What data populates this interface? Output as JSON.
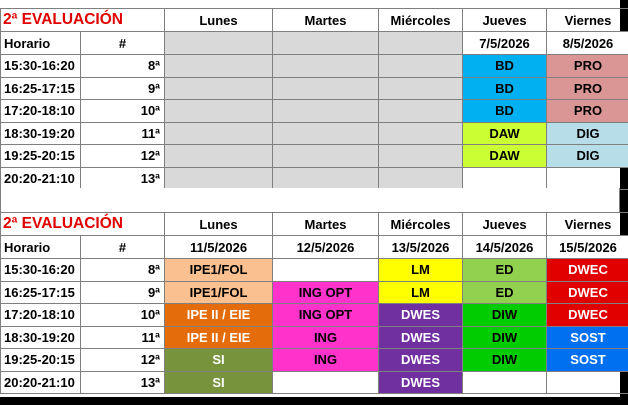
{
  "colors": {
    "title_red": "#e00000",
    "gray": "#d9d9d9",
    "BD": "#00b0f0",
    "PRO": "#da9694",
    "DAW": "#ccff33",
    "DIG": "#b7dee8",
    "IPE1/FOL": "#fac090",
    "IPE II / EIE": "#e46c0a",
    "ING OPT": "#ff33cc",
    "ING": "#ff33cc",
    "SI": "#77933c",
    "LM": "#ffff00",
    "DWES": "#7030a0",
    "ED": "#92d050",
    "DIW": "#00cc00",
    "DWEC": "#e00000",
    "SOST": "#0070f0"
  },
  "week1": {
    "title": "2ª EVALUACIÓN",
    "col_horario": "Horario",
    "col_num": "#",
    "days": [
      "Lunes",
      "Martes",
      "Miércoles",
      "Jueves",
      "Viernes"
    ],
    "dates": [
      "",
      "",
      "",
      "7/5/2026",
      "8/5/2026"
    ],
    "rows": [
      {
        "time": "15:30-16:20",
        "num": "8ª",
        "cells": [
          "",
          "",
          "",
          "BD",
          "PRO"
        ]
      },
      {
        "time": "16:25-17:15",
        "num": "9ª",
        "cells": [
          "",
          "",
          "",
          "BD",
          "PRO"
        ]
      },
      {
        "time": "17:20-18:10",
        "num": "10ª",
        "cells": [
          "",
          "",
          "",
          "BD",
          "PRO"
        ]
      },
      {
        "time": "18:30-19:20",
        "num": "11ª",
        "cells": [
          "",
          "",
          "",
          "DAW",
          "DIG"
        ]
      },
      {
        "time": "19:25-20:15",
        "num": "12ª",
        "cells": [
          "",
          "",
          "",
          "DAW",
          "DIG"
        ]
      },
      {
        "time": "20:20-21:10",
        "num": "13ª",
        "cells": [
          "",
          "",
          "",
          "",
          ""
        ]
      }
    ]
  },
  "week2": {
    "title": "2ª EVALUACIÓN",
    "col_horario": "Horario",
    "col_num": "#",
    "days": [
      "Lunes",
      "Martes",
      "Miércoles",
      "Jueves",
      "Viernes"
    ],
    "dates": [
      "11/5/2026",
      "12/5/2026",
      "13/5/2026",
      "14/5/2026",
      "15/5/2026"
    ],
    "rows": [
      {
        "time": "15:30-16:20",
        "num": "8ª",
        "cells": [
          "IPE1/FOL",
          "",
          "LM",
          "ED",
          "DWEC"
        ]
      },
      {
        "time": "16:25-17:15",
        "num": "9ª",
        "cells": [
          "IPE1/FOL",
          "ING OPT",
          "LM",
          "ED",
          "DWEC"
        ]
      },
      {
        "time": "17:20-18:10",
        "num": "10ª",
        "cells": [
          "IPE II / EIE",
          "ING OPT",
          "DWES",
          "DIW",
          "DWEC"
        ]
      },
      {
        "time": "18:30-19:20",
        "num": "11ª",
        "cells": [
          "IPE II / EIE",
          "ING",
          "DWES",
          "DIW",
          "SOST"
        ]
      },
      {
        "time": "19:25-20:15",
        "num": "12ª",
        "cells": [
          "SI",
          "ING",
          "DWES",
          "DIW",
          "SOST"
        ]
      },
      {
        "time": "20:20-21:10",
        "num": "13ª",
        "cells": [
          "SI",
          "",
          "DWES",
          "",
          ""
        ]
      }
    ]
  }
}
